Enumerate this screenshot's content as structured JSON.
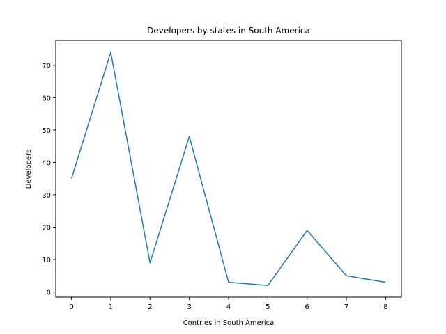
{
  "chart_data": {
    "type": "line",
    "title": "Developers by states in South America",
    "xlabel": "Contries in South America",
    "ylabel": "Developers",
    "x": [
      0,
      1,
      2,
      3,
      4,
      5,
      6,
      7,
      8
    ],
    "series": [
      {
        "values": [
          35,
          74,
          9,
          48,
          3,
          2,
          19,
          5,
          3
        ],
        "color": "#1f77b4"
      }
    ],
    "xlim": [
      -0.4,
      8.4
    ],
    "ylim": [
      -1.6,
      77.7
    ],
    "xticks": [
      0,
      1,
      2,
      3,
      4,
      5,
      6,
      7,
      8
    ],
    "yticks": [
      0,
      10,
      20,
      30,
      40,
      50,
      60,
      70
    ],
    "grid": false
  }
}
